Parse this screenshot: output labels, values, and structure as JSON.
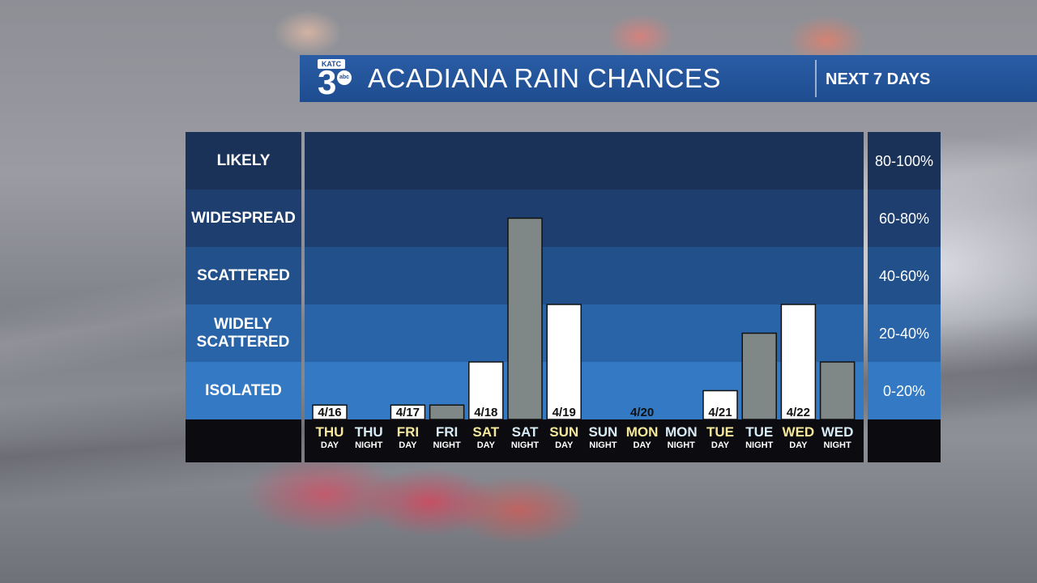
{
  "header": {
    "logo_top": "KATC",
    "logo_number": "3",
    "logo_network": "abc",
    "title": "ACADIANA RAIN CHANCES",
    "subtitle": "NEXT 7 DAYS"
  },
  "colors": {
    "header_bg": "#1f4e91",
    "band_colors": [
      "#1a3258",
      "#1d3e6e",
      "#22508a",
      "#2a64a8",
      "#3479c4"
    ],
    "day_bar": "#ffffff",
    "night_bar": "#7f8886",
    "day_label": "#f6e89a",
    "night_label": "#d8ecf7"
  },
  "chart_data": {
    "type": "bar",
    "title": "ACADIANA RAIN CHANCES",
    "subtitle": "NEXT 7 DAYS",
    "ylim": [
      0,
      100
    ],
    "bands": [
      {
        "label": "LIKELY",
        "range": "80-100%"
      },
      {
        "label": "WIDESPREAD",
        "range": "60-80%"
      },
      {
        "label": "SCATTERED",
        "range": "40-60%"
      },
      {
        "label": "WIDELY SCATTERED",
        "range": "20-40%"
      },
      {
        "label": "ISOLATED",
        "range": "0-20%"
      }
    ],
    "periods": [
      {
        "day": "THU",
        "part": "DAY",
        "date": "4/16",
        "value": 5,
        "kind": "day"
      },
      {
        "day": "THU",
        "part": "NIGHT",
        "date": "",
        "value": 0,
        "kind": "night"
      },
      {
        "day": "FRI",
        "part": "DAY",
        "date": "4/17",
        "value": 5,
        "kind": "day"
      },
      {
        "day": "FRI",
        "part": "NIGHT",
        "date": "",
        "value": 5,
        "kind": "night"
      },
      {
        "day": "SAT",
        "part": "DAY",
        "date": "4/18",
        "value": 20,
        "kind": "day"
      },
      {
        "day": "SAT",
        "part": "NIGHT",
        "date": "",
        "value": 70,
        "kind": "night"
      },
      {
        "day": "SUN",
        "part": "DAY",
        "date": "4/19",
        "value": 40,
        "kind": "day"
      },
      {
        "day": "SUN",
        "part": "NIGHT",
        "date": "",
        "value": 0,
        "kind": "night"
      },
      {
        "day": "MON",
        "part": "DAY",
        "date": "4/20",
        "value": 0,
        "kind": "day"
      },
      {
        "day": "MON",
        "part": "NIGHT",
        "date": "",
        "value": 0,
        "kind": "night"
      },
      {
        "day": "TUE",
        "part": "DAY",
        "date": "4/21",
        "value": 10,
        "kind": "day"
      },
      {
        "day": "TUE",
        "part": "NIGHT",
        "date": "",
        "value": 30,
        "kind": "night"
      },
      {
        "day": "WED",
        "part": "DAY",
        "date": "4/22",
        "value": 40,
        "kind": "day"
      },
      {
        "day": "WED",
        "part": "NIGHT",
        "date": "",
        "value": 20,
        "kind": "night"
      }
    ]
  }
}
